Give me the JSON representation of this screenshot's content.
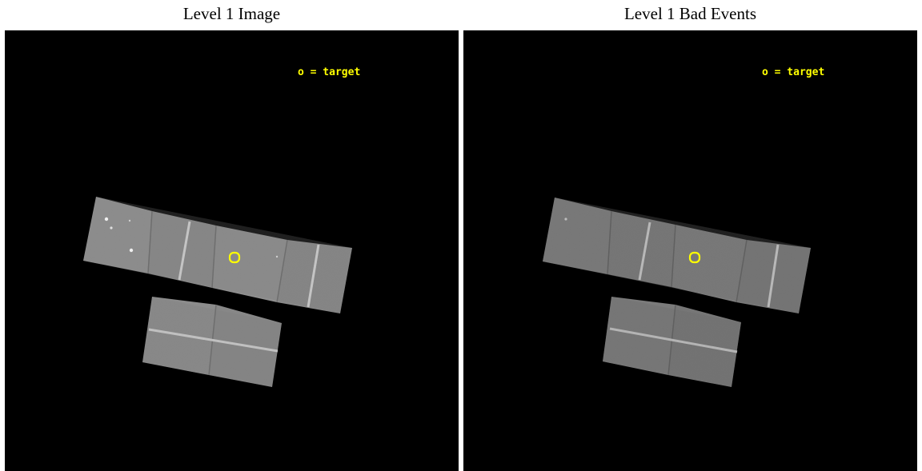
{
  "panels": [
    {
      "title": "Level 1 Image",
      "legend": "o = target",
      "legend_color": "#ffff00",
      "target_marker_color": "#ffff00",
      "chip_gray": "#8e8e8e"
    },
    {
      "title": "Level 1 Bad Events",
      "legend": "o = target",
      "legend_color": "#ffff00",
      "target_marker_color": "#ffff00",
      "chip_gray": "#7e7e7e"
    }
  ]
}
